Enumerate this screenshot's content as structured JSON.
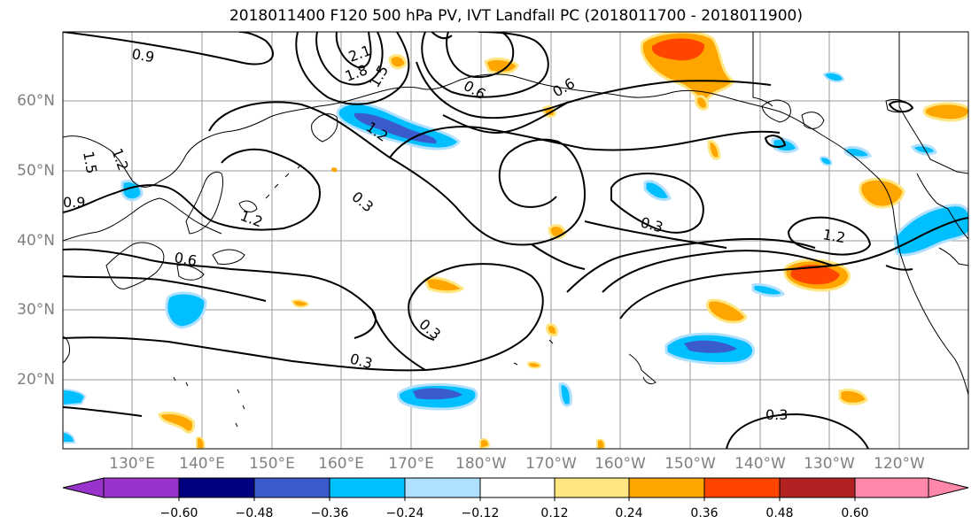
{
  "title": "2018011400 F120 500 hPa PV, IVT Landfall PC (2018011700 - 2018011900)",
  "map": {
    "lat_labels": [
      "60°N",
      "50°N",
      "40°N",
      "30°N",
      "20°N"
    ],
    "lon_labels": [
      "130°E",
      "140°E",
      "150°E",
      "160°E",
      "170°E",
      "180°W",
      "170°W",
      "160°W",
      "150°W",
      "140°W",
      "130°W",
      "120°W"
    ],
    "contour_labels": [
      "0.9",
      "2.1",
      "1.8",
      "1.5",
      "0.6",
      "0.6",
      "1.2",
      "1.2",
      "1.5",
      "0.9",
      "1.2",
      "0.3",
      "0.6",
      "0.3",
      "1.2",
      "0.3",
      "0.3",
      "0.3"
    ]
  },
  "colorbar": {
    "ticks": [
      "−0.60",
      "−0.48",
      "−0.36",
      "−0.24",
      "−0.12",
      "0.12",
      "0.24",
      "0.36",
      "0.48",
      "0.60"
    ],
    "colors": [
      "#9933cc",
      "#000080",
      "#3a5bcc",
      "#00bfff",
      "#b0e0ff",
      "#ffffff",
      "#ffe680",
      "#ffa500",
      "#ff4500",
      "#b22222",
      "#ff88aa"
    ]
  }
}
